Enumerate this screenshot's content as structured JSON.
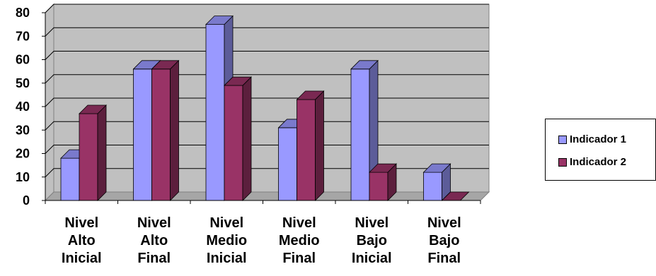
{
  "chart_data": {
    "type": "bar",
    "title": "",
    "xlabel": "",
    "ylabel": "",
    "ylim": [
      0,
      80
    ],
    "yticks": [
      0,
      10,
      20,
      30,
      40,
      50,
      60,
      70,
      80
    ],
    "grid": true,
    "legend_position": "right",
    "categories": [
      [
        "Nivel",
        "Alto",
        "Inicial"
      ],
      [
        "Nivel",
        "Alto",
        "Final"
      ],
      [
        "Nivel",
        "Medio",
        "Inicial"
      ],
      [
        "Nivel",
        "Medio",
        "Final"
      ],
      [
        "Nivel",
        "Bajo",
        "Inicial"
      ],
      [
        "Nivel",
        "Bajo",
        "Final"
      ]
    ],
    "series": [
      {
        "name": "Indicador 1",
        "color": "#9999FF",
        "values": [
          18,
          56,
          75,
          31,
          56,
          12
        ]
      },
      {
        "name": "Indicador 2",
        "color": "#993366",
        "values": [
          37,
          56,
          49,
          43,
          12,
          0
        ]
      }
    ]
  }
}
